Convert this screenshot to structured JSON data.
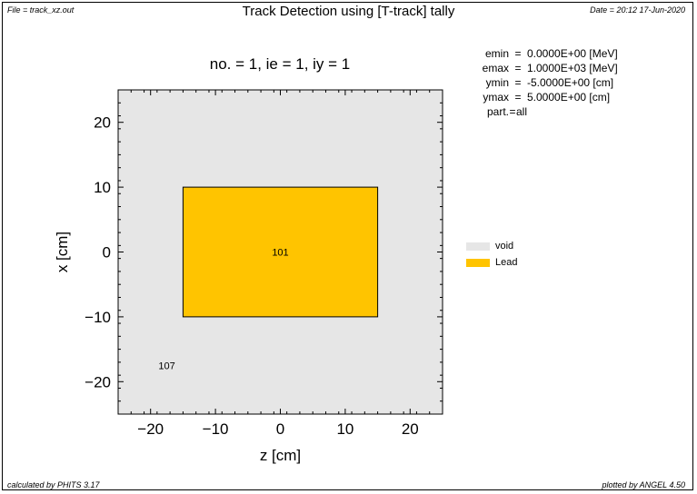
{
  "header": {
    "file_label": "File = track_xz.out",
    "title": "Track Detection using [T-track] tally",
    "date_label": "Date = 20:12 17-Jun-2020",
    "subtitle": "no. =  1,  ie =  1,  iy =  1"
  },
  "params": [
    {
      "key": "emin",
      "value": "0.0000E+00 [MeV]"
    },
    {
      "key": "emax",
      "value": "1.0000E+03 [MeV]"
    },
    {
      "key": "ymin",
      "value": "-5.0000E+00 [cm]"
    },
    {
      "key": "ymax",
      "value": "5.0000E+00 [cm]"
    },
    {
      "key": "part.",
      "value": "all"
    }
  ],
  "footer": {
    "left": "calculated by PHITS 3.17",
    "right": "plotted by ANGEL 4.50"
  },
  "chart_data": {
    "type": "heatmap",
    "title": "Track Detection using [T-track] tally",
    "subtitle": "no. =  1,  ie =  1,  iy =  1",
    "xlabel": "z [cm]",
    "ylabel": "x [cm]",
    "xlim": [
      -25,
      25
    ],
    "ylim": [
      -25,
      25
    ],
    "xticks": [
      -20,
      -10,
      0,
      10,
      20
    ],
    "yticks": [
      -20,
      -10,
      0,
      10,
      20
    ],
    "xtick_labels": [
      "−20",
      "−10",
      "0",
      "10",
      "20"
    ],
    "ytick_labels": [
      "−20",
      "−10",
      "0",
      "10",
      "20"
    ],
    "background_color": "#e6e6e6",
    "regions": [
      {
        "label": "101",
        "material": "Lead",
        "z": [
          -15,
          15
        ],
        "x": [
          -10,
          10
        ],
        "color": "#ffc400",
        "label_pos": [
          0,
          0
        ]
      },
      {
        "label": "107",
        "material": "void",
        "color": "#e6e6e6",
        "label_pos": [
          -17.5,
          -17.5
        ]
      }
    ],
    "legend": [
      {
        "name": "void",
        "color": "#e6e6e6"
      },
      {
        "name": "Lead",
        "color": "#ffc400"
      }
    ],
    "legend_position": "right"
  }
}
